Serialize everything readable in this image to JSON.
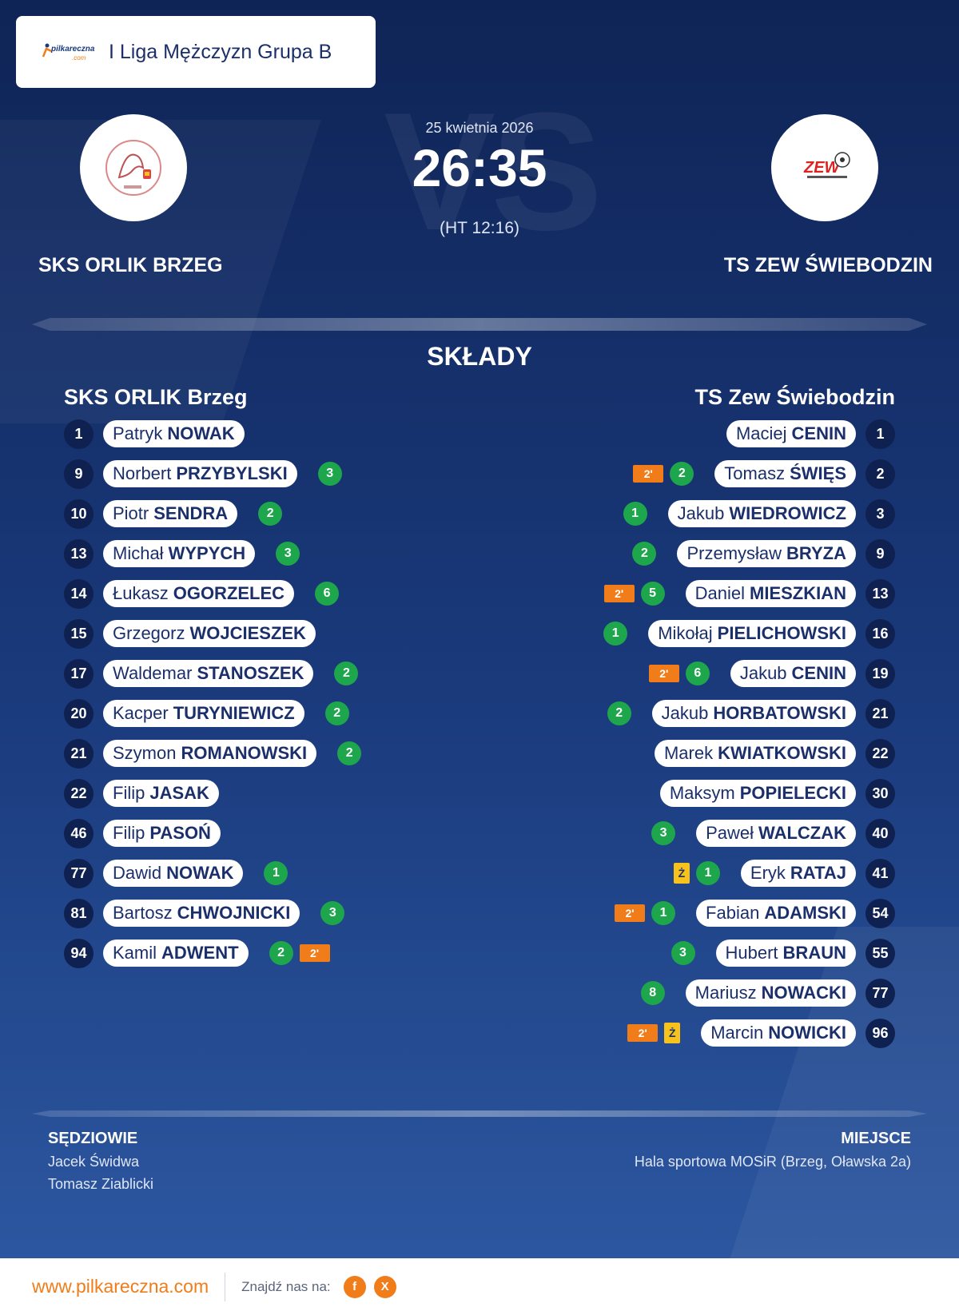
{
  "league": "I Liga Mężczyzn Grupa B",
  "match": {
    "date": "25 kwietnia 2026",
    "score": "26:35",
    "halftime": "(HT 12:16)"
  },
  "home_team": {
    "name_upper": "SKS ORLIK BRZEG",
    "name": "SKS ORLIK Brzeg",
    "players": [
      {
        "number": "1",
        "first": "Patryk",
        "last": "NOWAK",
        "goals": "",
        "two_min": "",
        "yellow": ""
      },
      {
        "number": "9",
        "first": "Norbert",
        "last": "PRZYBYLSKI",
        "goals": "3",
        "two_min": "",
        "yellow": ""
      },
      {
        "number": "10",
        "first": "Piotr",
        "last": "SENDRA",
        "goals": "2",
        "two_min": "",
        "yellow": ""
      },
      {
        "number": "13",
        "first": "Michał",
        "last": "WYPYCH",
        "goals": "3",
        "two_min": "",
        "yellow": ""
      },
      {
        "number": "14",
        "first": "Łukasz",
        "last": "OGORZELEC",
        "goals": "6",
        "two_min": "",
        "yellow": ""
      },
      {
        "number": "15",
        "first": "Grzegorz",
        "last": "WOJCIESZEK",
        "goals": "",
        "two_min": "",
        "yellow": ""
      },
      {
        "number": "17",
        "first": "Waldemar",
        "last": "STANOSZEK",
        "goals": "2",
        "two_min": "",
        "yellow": ""
      },
      {
        "number": "20",
        "first": "Kacper",
        "last": "TURYNIEWICZ",
        "goals": "2",
        "two_min": "",
        "yellow": ""
      },
      {
        "number": "21",
        "first": "Szymon",
        "last": "ROMANOWSKI",
        "goals": "2",
        "two_min": "",
        "yellow": ""
      },
      {
        "number": "22",
        "first": "Filip",
        "last": "JASAK",
        "goals": "",
        "two_min": "",
        "yellow": ""
      },
      {
        "number": "46",
        "first": "Filip",
        "last": "PASOŃ",
        "goals": "",
        "two_min": "",
        "yellow": ""
      },
      {
        "number": "77",
        "first": "Dawid",
        "last": "NOWAK",
        "goals": "1",
        "two_min": "",
        "yellow": ""
      },
      {
        "number": "81",
        "first": "Bartosz",
        "last": "CHWOJNICKI",
        "goals": "3",
        "two_min": "",
        "yellow": ""
      },
      {
        "number": "94",
        "first": "Kamil",
        "last": "ADWENT",
        "goals": "2",
        "two_min": "2'",
        "yellow": ""
      }
    ]
  },
  "away_team": {
    "name_upper": "TS ZEW ŚWIEBODZIN",
    "name": "TS Zew Świebodzin",
    "players": [
      {
        "number": "1",
        "first": "Maciej",
        "last": "CENIN",
        "goals": "",
        "two_min": "",
        "yellow": ""
      },
      {
        "number": "2",
        "first": "Tomasz",
        "last": "ŚWIĘS",
        "goals": "2",
        "two_min": "2'",
        "yellow": ""
      },
      {
        "number": "3",
        "first": "Jakub",
        "last": "WIEDROWICZ",
        "goals": "1",
        "two_min": "",
        "yellow": ""
      },
      {
        "number": "9",
        "first": "Przemysław",
        "last": "BRYZA",
        "goals": "2",
        "two_min": "",
        "yellow": ""
      },
      {
        "number": "13",
        "first": "Daniel",
        "last": "MIESZKIAN",
        "goals": "5",
        "two_min": "2'",
        "yellow": ""
      },
      {
        "number": "16",
        "first": "Mikołaj",
        "last": "PIELICHOWSKI",
        "goals": "1",
        "two_min": "",
        "yellow": ""
      },
      {
        "number": "19",
        "first": "Jakub",
        "last": "CENIN",
        "goals": "6",
        "two_min": "2'",
        "yellow": ""
      },
      {
        "number": "21",
        "first": "Jakub",
        "last": "HORBATOWSKI",
        "goals": "2",
        "two_min": "",
        "yellow": ""
      },
      {
        "number": "22",
        "first": "Marek",
        "last": "KWIATKOWSKI",
        "goals": "",
        "two_min": "",
        "yellow": ""
      },
      {
        "number": "30",
        "first": "Maksym",
        "last": "POPIELECKI",
        "goals": "",
        "two_min": "",
        "yellow": ""
      },
      {
        "number": "40",
        "first": "Paweł",
        "last": "WALCZAK",
        "goals": "3",
        "two_min": "",
        "yellow": ""
      },
      {
        "number": "41",
        "first": "Eryk",
        "last": "RATAJ",
        "goals": "1",
        "two_min": "",
        "yellow": "Ż"
      },
      {
        "number": "54",
        "first": "Fabian",
        "last": "ADAMSKI",
        "goals": "1",
        "two_min": "2'",
        "yellow": ""
      },
      {
        "number": "55",
        "first": "Hubert",
        "last": "BRAUN",
        "goals": "3",
        "two_min": "",
        "yellow": ""
      },
      {
        "number": "77",
        "first": "Mariusz",
        "last": "NOWACKI",
        "goals": "8",
        "two_min": "",
        "yellow": ""
      },
      {
        "number": "96",
        "first": "Marcin",
        "last": "NOWICKI",
        "goals": "",
        "two_min": "2'",
        "yellow": "Ż"
      }
    ]
  },
  "labels": {
    "lineups": "SKŁADY",
    "referees": "SĘDZIOWIE",
    "venue": "MIEJSCE"
  },
  "referees": [
    "Jacek Świdwa",
    "Tomasz Ziablicki"
  ],
  "venue": "Hala sportowa MOSiR (Brzeg, Oławska 2a)",
  "footer": {
    "website": "www.pilkareczna.com",
    "find_us": "Znajdź nas na:",
    "social": [
      {
        "icon": "facebook-icon",
        "glyph": "f"
      },
      {
        "icon": "x-icon",
        "glyph": "X"
      }
    ]
  },
  "colors": {
    "accent": "#f07c1a",
    "goals": "#1ea64c",
    "yellow_card": "#f7c21b",
    "navy": "#0e2150"
  }
}
